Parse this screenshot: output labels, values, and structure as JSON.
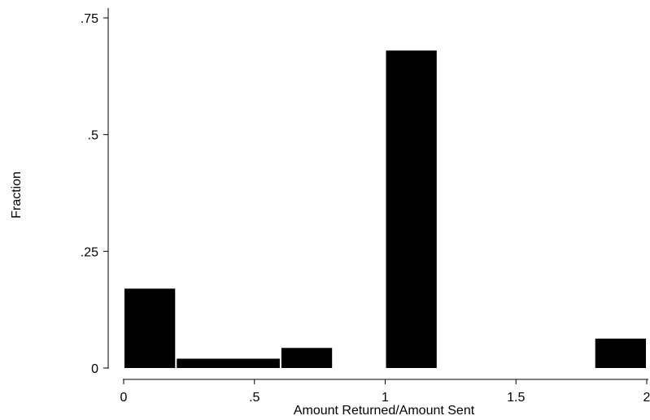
{
  "chart_data": {
    "type": "bar",
    "title": "",
    "xlabel": "Amount Returned/Amount Sent",
    "ylabel": "Fraction",
    "xlim": [
      0,
      2
    ],
    "ylim": [
      0,
      0.75
    ],
    "xticks": [
      {
        "value": 0,
        "label": "0"
      },
      {
        "value": 0.5,
        "label": ".5"
      },
      {
        "value": 1,
        "label": "1"
      },
      {
        "value": 1.5,
        "label": "1.5"
      },
      {
        "value": 2,
        "label": "2"
      }
    ],
    "yticks": [
      {
        "value": 0,
        "label": "0"
      },
      {
        "value": 0.25,
        "label": ".25"
      },
      {
        "value": 0.5,
        "label": ".5"
      },
      {
        "value": 0.75,
        "label": ".75"
      }
    ],
    "bars": [
      {
        "x0": 0.0,
        "x1": 0.2,
        "value": 0.17
      },
      {
        "x0": 0.2,
        "x1": 0.6,
        "value": 0.02
      },
      {
        "x0": 0.6,
        "x1": 0.8,
        "value": 0.043
      },
      {
        "x0": 1.0,
        "x1": 1.2,
        "value": 0.68
      },
      {
        "x0": 1.8,
        "x1": 2.0,
        "value": 0.063
      }
    ],
    "bar_color": "#000000",
    "grid": false
  }
}
